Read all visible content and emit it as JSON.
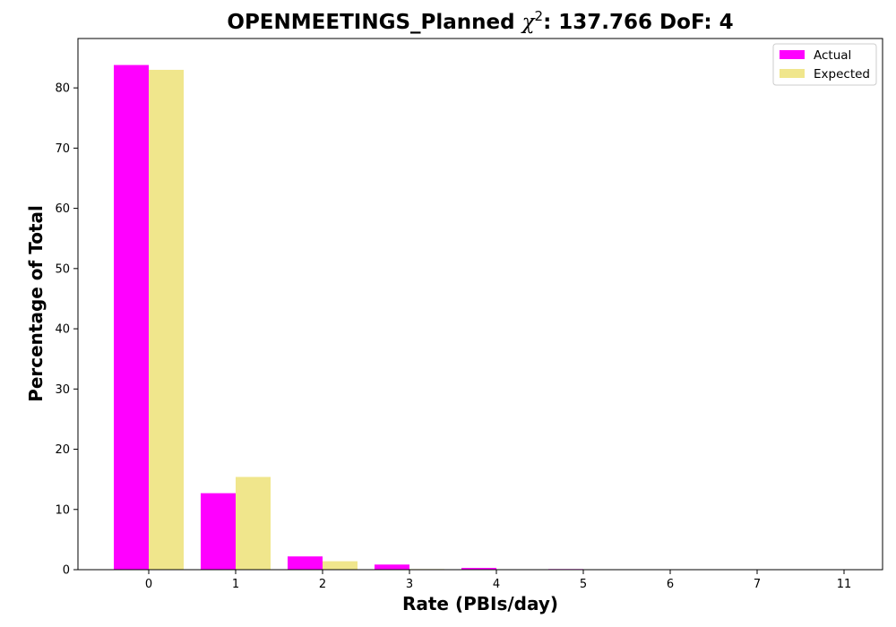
{
  "chart_data": {
    "type": "bar",
    "title": "OPENMEETINGS_Planned χ²: 137.766 DoF: 4",
    "title_parts": {
      "prefix": "OPENMEETINGS_Planned ",
      "chi": "χ",
      "sup": "2",
      "suffix": ": 137.766 DoF: 4"
    },
    "xlabel": "Rate (PBIs/day)",
    "ylabel": "Percentage of Total",
    "categories": [
      "0",
      "1",
      "2",
      "3",
      "4",
      "5",
      "6",
      "7",
      "11"
    ],
    "series": [
      {
        "name": "Actual",
        "color": "#ff00ff",
        "values": [
          83.8,
          12.7,
          2.2,
          0.85,
          0.3,
          0.1,
          0,
          0,
          0
        ]
      },
      {
        "name": "Expected",
        "color": "#f0e68c",
        "values": [
          83.0,
          15.4,
          1.4,
          0.1,
          0,
          0,
          0,
          0,
          0
        ]
      }
    ],
    "ylim": [
      0,
      88.2
    ],
    "yticks": [
      0,
      10,
      20,
      30,
      40,
      50,
      60,
      70,
      80
    ],
    "grid": false,
    "legend_position": "top-right"
  }
}
